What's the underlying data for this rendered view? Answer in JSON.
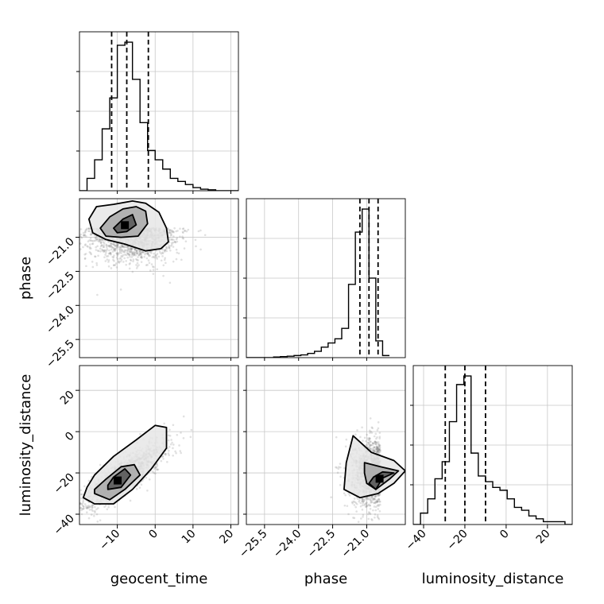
{
  "chart_data": {
    "type": "corner",
    "parameters": [
      "geocent_time",
      "phase",
      "luminosity_distance"
    ],
    "ranges": {
      "geocent_time": [
        -20,
        22
      ],
      "phase": [
        -26.3,
        -19.3
      ],
      "luminosity_distance": [
        -45,
        32
      ]
    },
    "ticks": {
      "geocent_time": [
        -10,
        0,
        10,
        20
      ],
      "phase": [
        -25.5,
        -24.0,
        -22.5,
        -21.0
      ],
      "luminosity_distance": [
        -40,
        -20,
        0,
        20
      ]
    },
    "tick_labels": {
      "geocent_time": [
        "−10",
        "0",
        "10",
        "20"
      ],
      "phase": [
        "−25.5",
        "−24.0",
        "−22.5",
        "−21.0"
      ],
      "luminosity_distance": [
        "−40",
        "−20",
        "0",
        "20"
      ]
    },
    "quantiles": {
      "geocent_time": [
        -11.5,
        -7.5,
        -1.8
      ],
      "phase": [
        -21.3,
        -20.9,
        -20.5
      ],
      "luminosity_distance": [
        -29.5,
        -20,
        -10
      ]
    },
    "histograms": {
      "geocent_time": {
        "edges": [
          -20,
          -18,
          -16,
          -14,
          -12,
          -10,
          -8,
          -6,
          -4,
          -2,
          0,
          2,
          4,
          6,
          8,
          10,
          12,
          14,
          16,
          18,
          20,
          22
        ],
        "counts": [
          0,
          4,
          10,
          20,
          30,
          47,
          48,
          36,
          22,
          13,
          10,
          7,
          4,
          3,
          2,
          1,
          0.5,
          0.3,
          0,
          0,
          0
        ]
      },
      "phase": {
        "edges": [
          -26.3,
          -26.0,
          -25.7,
          -25.4,
          -25.1,
          -24.8,
          -24.5,
          -24.2,
          -23.9,
          -23.6,
          -23.3,
          -23.0,
          -22.7,
          -22.4,
          -22.1,
          -21.8,
          -21.5,
          -21.2,
          -20.9,
          -20.6,
          -20.3,
          -20.0
        ],
        "counts": [
          0,
          0,
          0,
          0,
          0.3,
          0.5,
          0.7,
          1.0,
          1.3,
          2,
          3,
          5,
          7,
          9,
          14,
          35,
          60,
          71,
          38,
          8,
          1
        ]
      },
      "luminosity_distance": {
        "edges": [
          -45,
          -41.5,
          -38,
          -34.5,
          -31,
          -27.5,
          -24,
          -20.5,
          -17,
          -13.5,
          -10,
          -6.5,
          -3,
          0.5,
          4,
          7.5,
          11,
          14.5,
          18,
          21.5,
          25,
          28.5,
          32
        ],
        "counts": [
          0,
          4,
          9,
          16,
          22,
          36,
          49,
          52,
          25,
          17,
          15,
          13,
          12,
          9,
          6,
          5,
          3,
          2,
          1,
          1,
          1,
          0
        ]
      }
    },
    "point_clouds": {
      "phase_vs_geocent_time": {
        "center": [
          -6,
          -20.9
        ],
        "spread": [
          6,
          0.7
        ],
        "contours": [
          [
            [
              -17.5,
              -20.2
            ],
            [
              -15.5,
              -19.65
            ],
            [
              -11,
              -19.55
            ],
            [
              -6,
              -19.4
            ],
            [
              -2.5,
              -19.5
            ],
            [
              1,
              -19.9
            ],
            [
              3,
              -20.6
            ],
            [
              3.5,
              -21.2
            ],
            [
              1.5,
              -21.5
            ],
            [
              -2.5,
              -21.6
            ],
            [
              -8,
              -21.3
            ],
            [
              -13,
              -21.1
            ],
            [
              -16.5,
              -20.8
            ]
          ],
          [
            [
              -14.5,
              -20.6
            ],
            [
              -12,
              -20.1
            ],
            [
              -8.5,
              -19.75
            ],
            [
              -5,
              -19.65
            ],
            [
              -2.5,
              -19.85
            ],
            [
              -2,
              -20.4
            ],
            [
              -4.5,
              -20.95
            ],
            [
              -9,
              -21
            ],
            [
              -13,
              -20.95
            ]
          ],
          [
            [
              -11,
              -20.6
            ],
            [
              -8.5,
              -20.2
            ],
            [
              -6,
              -20.0
            ],
            [
              -5,
              -20.45
            ],
            [
              -7.5,
              -20.75
            ],
            [
              -10,
              -20.8
            ]
          ]
        ]
      },
      "luminosity_distance_vs_geocent_time": {
        "center": [
          -8,
          -21
        ],
        "spread": [
          5,
          7
        ],
        "contours": [
          [
            [
              -19,
              -32
            ],
            [
              -16,
              -35
            ],
            [
              -11,
              -35
            ],
            [
              -6,
              -28
            ],
            [
              -1,
              -18
            ],
            [
              3,
              -8
            ],
            [
              3,
              2
            ],
            [
              0,
              3
            ],
            [
              -5,
              -4
            ],
            [
              -11,
              -12
            ],
            [
              -16,
              -21
            ],
            [
              -18,
              -27
            ]
          ],
          [
            [
              -16,
              -30
            ],
            [
              -12,
              -33
            ],
            [
              -8,
              -28
            ],
            [
              -4,
              -21
            ],
            [
              -5.5,
              -16
            ],
            [
              -9,
              -17
            ],
            [
              -13,
              -23
            ],
            [
              -16,
              -28
            ]
          ],
          [
            [
              -12.5,
              -28
            ],
            [
              -9,
              -27
            ],
            [
              -6.5,
              -21
            ],
            [
              -8,
              -18
            ],
            [
              -11,
              -22
            ],
            [
              -12.5,
              -26
            ]
          ]
        ]
      },
      "luminosity_distance_vs_phase": {
        "center": [
          -20.8,
          -20
        ],
        "spread": [
          0.5,
          8
        ],
        "contours": [
          [
            [
              -21.3,
              -5
            ],
            [
              -20.8,
              -10
            ],
            [
              -19.8,
              -14
            ],
            [
              -19.3,
              -19
            ],
            [
              -19.8,
              -25
            ],
            [
              -20.5,
              -30
            ],
            [
              -21.3,
              -32
            ],
            [
              -22.0,
              -28
            ],
            [
              -21.9,
              -15
            ],
            [
              -21.6,
              -2
            ]
          ],
          [
            [
              -21.1,
              -15
            ],
            [
              -20.4,
              -17
            ],
            [
              -19.6,
              -19
            ],
            [
              -20.0,
              -23
            ],
            [
              -20.6,
              -28
            ],
            [
              -21.0,
              -25
            ],
            [
              -21.1,
              -20
            ]
          ],
          [
            [
              -20.7,
              -22
            ],
            [
              -20.3,
              -19.5
            ],
            [
              -19.8,
              -20
            ],
            [
              -20.3,
              -22.5
            ],
            [
              -20.6,
              -28
            ],
            [
              -20.9,
              -25
            ]
          ]
        ]
      }
    }
  }
}
